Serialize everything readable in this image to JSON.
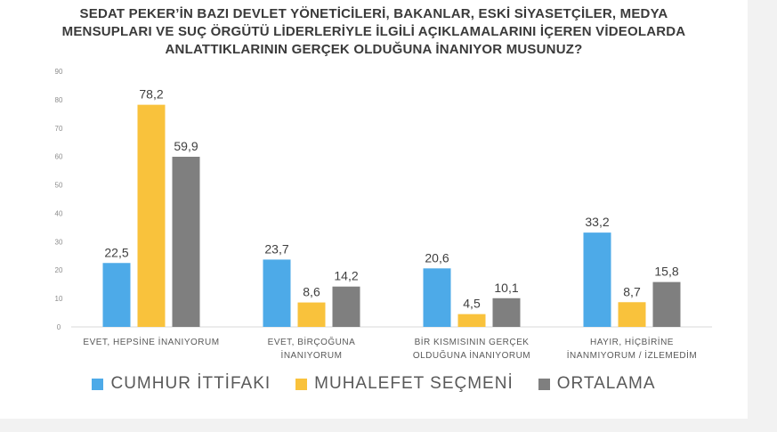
{
  "chart_data": {
    "type": "bar",
    "title_lines": [
      "SEDAT PEKER’İN BAZI DEVLET YÖNETİCİLERİ, BAKANLAR, ESKİ SİYASETÇİLER, MEDYA",
      "MENSUPLARI VE SUÇ ÖRGÜTÜ LİDERLERİYLE İLGİLİ AÇIKLAMALARINI İÇEREN VİDEOLARDA",
      "ANLATTIKLARININ GERÇEK OLDUĞUNA İNANIYOR MUSUNUZ?"
    ],
    "categories": [
      [
        "EVET, HEPSİNE İNANIYORUM"
      ],
      [
        "EVET, BİRÇOĞUNA",
        "İNANIYORUM"
      ],
      [
        "BİR KISMISININ GERÇEK",
        "OLDUĞUNA İNANIYORUM"
      ],
      [
        "HAYIR, HİÇBİRİNE",
        "İNANMIYORUM / İZLEMEDİM"
      ]
    ],
    "series": [
      {
        "name": "CUMHUR İTTİFAKI",
        "color": "#4DAAE8",
        "values": [
          22.5,
          23.7,
          20.6,
          33.2
        ],
        "labels": [
          "22,5",
          "23,7",
          "20,6",
          "33,2"
        ]
      },
      {
        "name": "MUHALEFET SEÇMENİ",
        "color": "#F9C23C",
        "values": [
          78.2,
          8.6,
          4.5,
          8.7
        ],
        "labels": [
          "78,2",
          "8,6",
          "4,5",
          "8,7"
        ]
      },
      {
        "name": "ORTALAMA",
        "color": "#7F7F7F",
        "values": [
          59.9,
          14.2,
          10.1,
          15.8
        ],
        "labels": [
          "59,9",
          "14,2",
          "10,1",
          "15,8"
        ]
      }
    ],
    "y_ticks": [
      0,
      10,
      20,
      30,
      40,
      50,
      60,
      70,
      80,
      90
    ],
    "ylim": [
      0,
      90
    ],
    "grid": false,
    "legend_position": "bottom"
  }
}
